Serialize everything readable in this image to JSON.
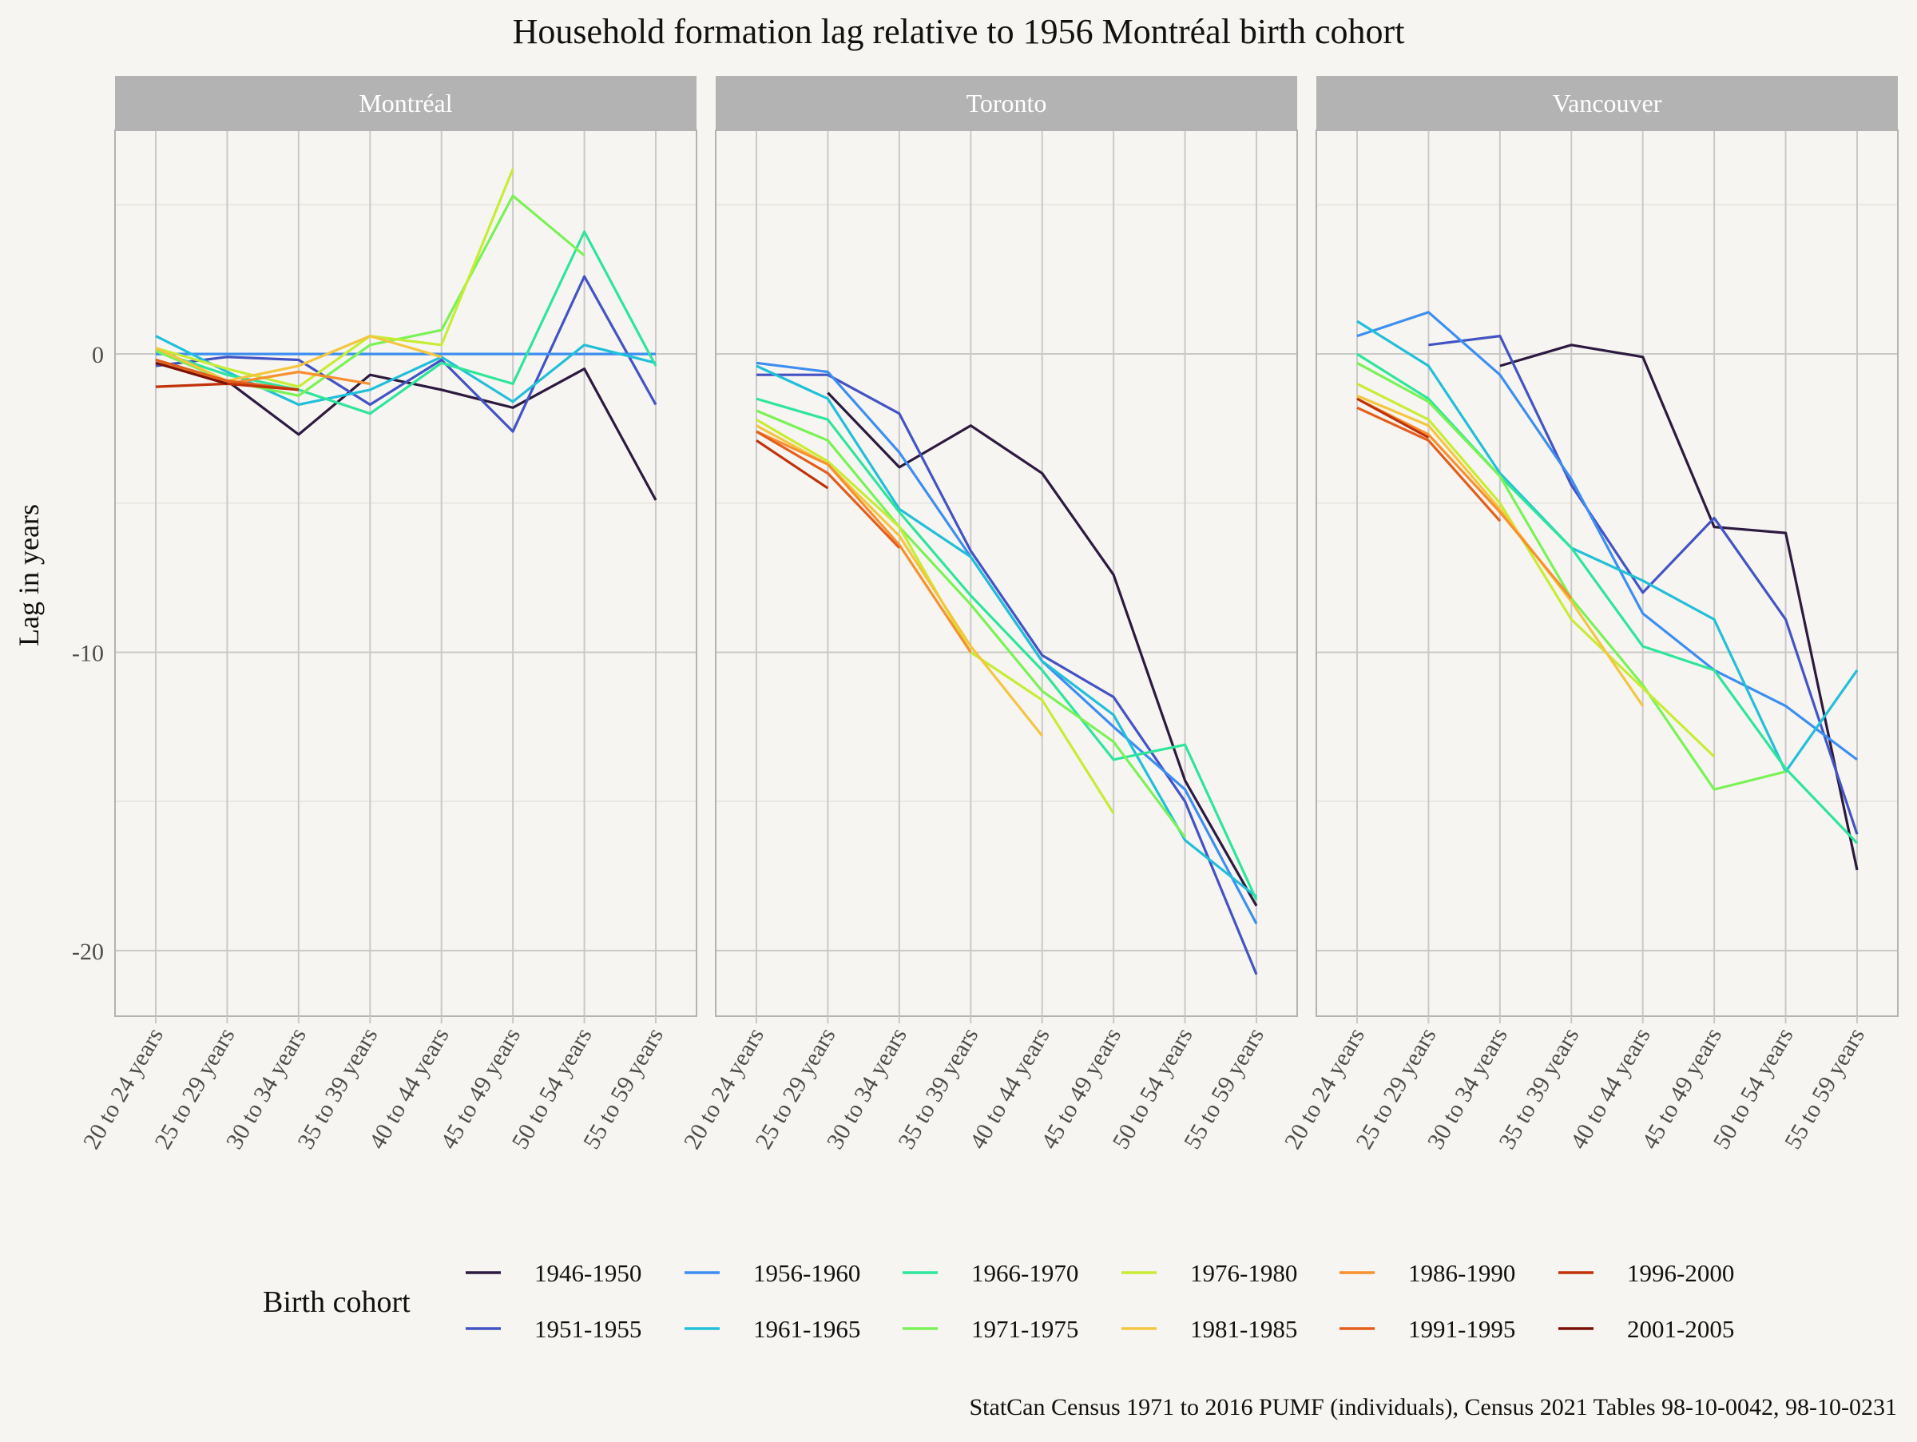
{
  "chart_data": {
    "type": "line",
    "title": "Household formation lag relative to 1956 Montréal birth cohort",
    "ylabel": "Lag in years",
    "xlabel": "",
    "caption": "StatCan Census 1971 to 2016 PUMF (individuals), Census 2021 Tables 98-10-0042, 98-10-0231",
    "legend_title": "Birth cohort",
    "legend_position": "bottom",
    "ylim": [
      -22.2,
      7.5
    ],
    "y_ticks": [
      0,
      -10,
      -20
    ],
    "y_tick_labels": [
      "0",
      "-10",
      "-20"
    ],
    "grid": true,
    "categories": [
      "20 to 24 years",
      "25 to 29 years",
      "30 to 34 years",
      "35 to 39 years",
      "40 to 44 years",
      "45 to 49 years",
      "50 to 54 years",
      "55 to 59 years"
    ],
    "cohorts": [
      "1946-1950",
      "1951-1955",
      "1956-1960",
      "1961-1965",
      "1966-1970",
      "1971-1975",
      "1976-1980",
      "1981-1985",
      "1986-1990",
      "1991-1995",
      "1996-2000",
      "2001-2005"
    ],
    "colors": [
      "#2c1a3f",
      "#4353c4",
      "#3d8ef0",
      "#22bfd9",
      "#2ee59b",
      "#7af257",
      "#c7ec35",
      "#f3c640",
      "#f79030",
      "#e35e1c",
      "#c03209",
      "#7b1006"
    ],
    "panels": [
      {
        "name": "Montréal",
        "series": [
          {
            "name": "1946-1950",
            "values": [
              -0.2,
              -0.9,
              -2.7,
              -0.7,
              -1.2,
              -1.8,
              -0.5,
              -4.9
            ]
          },
          {
            "name": "1951-1955",
            "values": [
              -0.4,
              -0.1,
              -0.2,
              -1.7,
              -0.2,
              -2.6,
              2.6,
              -1.7
            ]
          },
          {
            "name": "1956-1960",
            "values": [
              0,
              0,
              0,
              0,
              0,
              0,
              0,
              0
            ]
          },
          {
            "name": "1961-1965",
            "values": [
              0.6,
              -0.6,
              -1.7,
              -1.2,
              -0.1,
              -1.6,
              0.3,
              -0.3
            ]
          },
          {
            "name": "1966-1970",
            "values": [
              0.1,
              -0.7,
              -1.2,
              -2.0,
              -0.3,
              -1.0,
              4.1,
              -0.4
            ]
          },
          {
            "name": "1971-1975",
            "values": [
              0.1,
              -0.9,
              -1.4,
              0.3,
              0.8,
              5.3,
              3.3,
              null
            ]
          },
          {
            "name": "1976-1980",
            "values": [
              0.2,
              -0.5,
              -1.1,
              0.6,
              0.3,
              6.2,
              null,
              null
            ]
          },
          {
            "name": "1981-1985",
            "values": [
              0.2,
              -0.9,
              -0.4,
              0.6,
              -0.1,
              null,
              null,
              null
            ]
          },
          {
            "name": "1986-1990",
            "values": [
              -0.2,
              -1.0,
              -0.6,
              -1.0,
              null,
              null,
              null,
              null
            ]
          },
          {
            "name": "1991-1995",
            "values": [
              -0.2,
              -0.9,
              -1.2,
              null,
              null,
              null,
              null,
              null
            ]
          },
          {
            "name": "1996-2000",
            "values": [
              -1.1,
              -1.0,
              -1.2,
              null,
              null,
              null,
              null,
              null
            ]
          },
          {
            "name": "2001-2005",
            "values": [
              -0.3,
              -1.0,
              null,
              null,
              null,
              null,
              null,
              null
            ]
          }
        ]
      },
      {
        "name": "Toronto",
        "series": [
          {
            "name": "1946-1950",
            "values": [
              null,
              -1.3,
              -3.8,
              -2.4,
              -4.0,
              -7.4,
              -14.3,
              -18.5
            ]
          },
          {
            "name": "1951-1955",
            "values": [
              -0.7,
              -0.7,
              -2.0,
              -6.6,
              -10.1,
              -11.5,
              -15.0,
              -20.8
            ]
          },
          {
            "name": "1956-1960",
            "values": [
              -0.3,
              -0.6,
              -3.3,
              -6.8,
              -10.3,
              -12.5,
              -14.6,
              -19.1
            ]
          },
          {
            "name": "1961-1965",
            "values": [
              -0.4,
              -1.5,
              -5.2,
              -6.8,
              -10.3,
              -12.1,
              -16.3,
              -18.2
            ]
          },
          {
            "name": "1966-1970",
            "values": [
              -1.5,
              -2.2,
              -5.3,
              -8.1,
              -10.6,
              -13.6,
              -13.1,
              -18.3
            ]
          },
          {
            "name": "1971-1975",
            "values": [
              -1.9,
              -2.9,
              -5.8,
              -8.4,
              -11.3,
              -13.0,
              -16.2,
              null
            ]
          },
          {
            "name": "1976-1980",
            "values": [
              -2.2,
              -3.6,
              -5.8,
              -10.0,
              -11.6,
              -15.4,
              null,
              null
            ]
          },
          {
            "name": "1981-1985",
            "values": [
              -2.4,
              -3.7,
              -6.1,
              -9.8,
              -12.8,
              null,
              null,
              null
            ]
          },
          {
            "name": "1986-1990",
            "values": [
              -2.6,
              -3.7,
              -6.4,
              -10.0,
              null,
              null,
              null,
              null
            ]
          },
          {
            "name": "1991-1995",
            "values": [
              -2.6,
              -4.0,
              -6.5,
              null,
              null,
              null,
              null,
              null
            ]
          },
          {
            "name": "1996-2000",
            "values": [
              -2.9,
              -4.5,
              null,
              null,
              null,
              null,
              null,
              null
            ]
          },
          {
            "name": "2001-2005",
            "values": [
              null,
              null,
              null,
              null,
              null,
              null,
              null,
              null
            ]
          }
        ]
      },
      {
        "name": "Vancouver",
        "series": [
          {
            "name": "1946-1950",
            "values": [
              null,
              null,
              -0.4,
              0.3,
              -0.1,
              -5.8,
              -6.0,
              -17.3
            ]
          },
          {
            "name": "1951-1955",
            "values": [
              null,
              0.3,
              0.6,
              -4.4,
              -8.0,
              -5.5,
              -8.9,
              -16.1
            ]
          },
          {
            "name": "1956-1960",
            "values": [
              0.6,
              1.4,
              -0.7,
              -4.2,
              -8.7,
              -10.6,
              -11.8,
              -13.6
            ]
          },
          {
            "name": "1961-1965",
            "values": [
              1.1,
              -0.4,
              -4.0,
              -6.5,
              -7.6,
              -8.9,
              -14.0,
              -10.6
            ]
          },
          {
            "name": "1966-1970",
            "values": [
              0.0,
              -1.5,
              -4.1,
              -6.5,
              -9.8,
              -10.6,
              -13.9,
              -16.4
            ]
          },
          {
            "name": "1971-1975",
            "values": [
              -0.3,
              -1.6,
              -4.1,
              -8.2,
              -11.1,
              -14.6,
              -14.0,
              null
            ]
          },
          {
            "name": "1976-1980",
            "values": [
              -1.0,
              -2.2,
              -5.0,
              -8.9,
              -11.2,
              -13.5,
              null,
              null
            ]
          },
          {
            "name": "1981-1985",
            "values": [
              -1.4,
              -2.4,
              -5.2,
              -8.3,
              -11.8,
              null,
              null,
              null
            ]
          },
          {
            "name": "1986-1990",
            "values": [
              -1.5,
              -2.7,
              -5.3,
              -8.2,
              null,
              null,
              null,
              null
            ]
          },
          {
            "name": "1991-1995",
            "values": [
              -1.8,
              -2.9,
              -5.6,
              null,
              null,
              null,
              null,
              null
            ]
          },
          {
            "name": "1996-2000",
            "values": [
              -1.5,
              -2.8,
              null,
              null,
              null,
              null,
              null,
              null
            ]
          },
          {
            "name": "2001-2005",
            "values": [
              -1.4,
              null,
              null,
              null,
              null,
              null,
              null,
              null
            ]
          }
        ]
      }
    ]
  }
}
